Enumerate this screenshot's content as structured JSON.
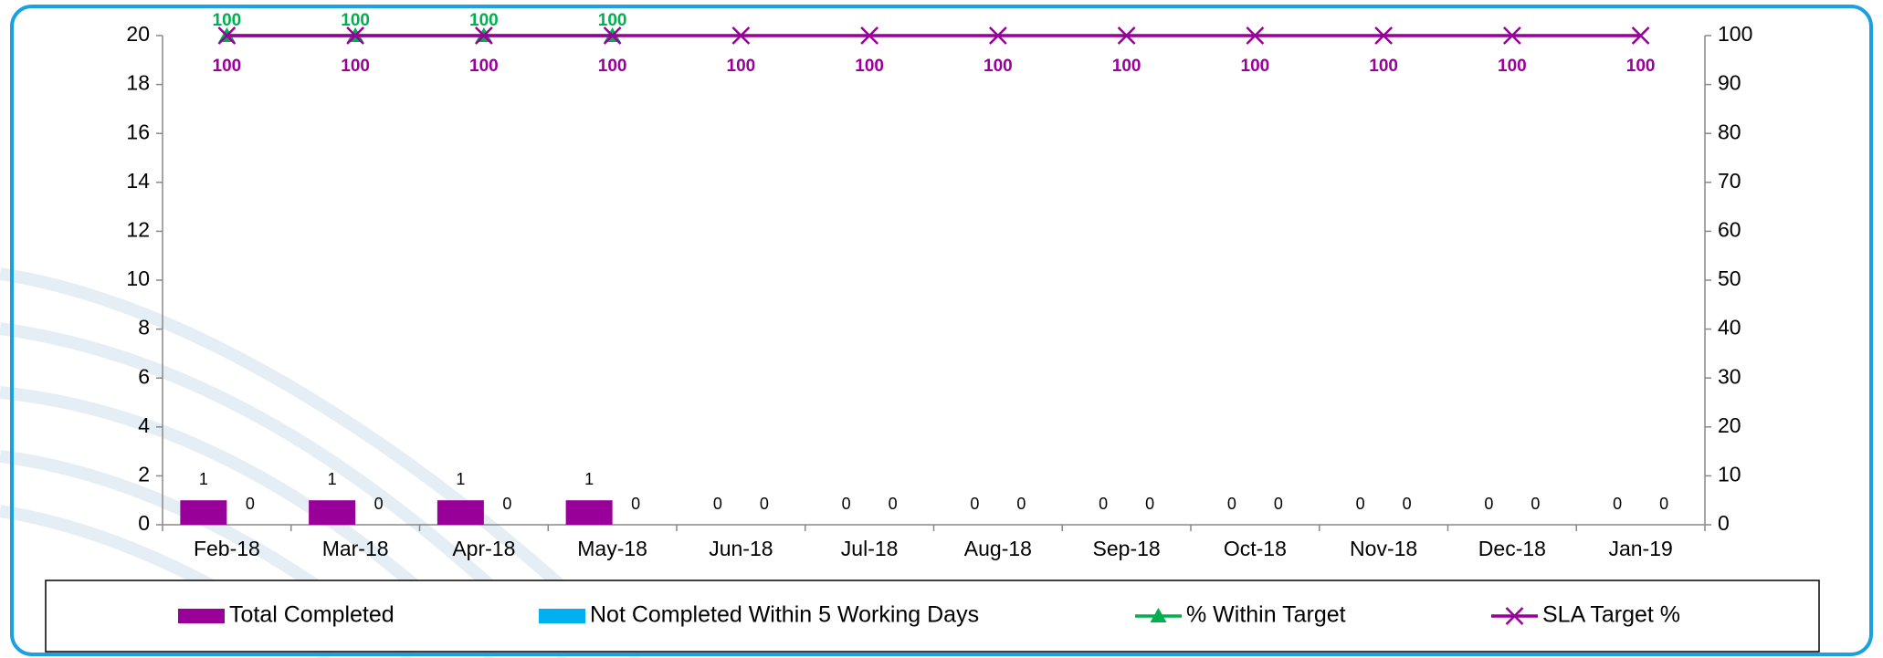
{
  "chart_data": {
    "type": "combo",
    "categories": [
      "Feb-18",
      "Mar-18",
      "Apr-18",
      "May-18",
      "Jun-18",
      "Jul-18",
      "Aug-18",
      "Sep-18",
      "Oct-18",
      "Nov-18",
      "Dec-18",
      "Jan-19"
    ],
    "series": [
      {
        "name": "Total Completed",
        "type": "bar",
        "color": "#990099",
        "values": [
          1,
          1,
          1,
          1,
          0,
          0,
          0,
          0,
          0,
          0,
          0,
          0
        ]
      },
      {
        "name": "Not Completed Within 5 Working Days",
        "type": "bar",
        "color": "#00b0f0",
        "values": [
          0,
          0,
          0,
          0,
          0,
          0,
          0,
          0,
          0,
          0,
          0,
          0
        ]
      },
      {
        "name": "% Within Target",
        "type": "line",
        "marker": "triangle",
        "axis": "y2",
        "color": "#00b050",
        "values": [
          100,
          100,
          100,
          100,
          null,
          null,
          null,
          null,
          null,
          null,
          null,
          null
        ]
      },
      {
        "name": "SLA Target %",
        "type": "line",
        "marker": "x",
        "axis": "y2",
        "color": "#990099",
        "values": [
          100,
          100,
          100,
          100,
          100,
          100,
          100,
          100,
          100,
          100,
          100,
          100
        ]
      }
    ],
    "ylim": [
      0,
      20
    ],
    "yticks": [
      0,
      2,
      4,
      6,
      8,
      10,
      12,
      14,
      16,
      18,
      20
    ],
    "y2lim": [
      0,
      100
    ],
    "y2ticks": [
      0,
      10,
      20,
      30,
      40,
      50,
      60,
      70,
      80,
      90,
      100
    ],
    "grid": false,
    "legend": "bottom"
  }
}
